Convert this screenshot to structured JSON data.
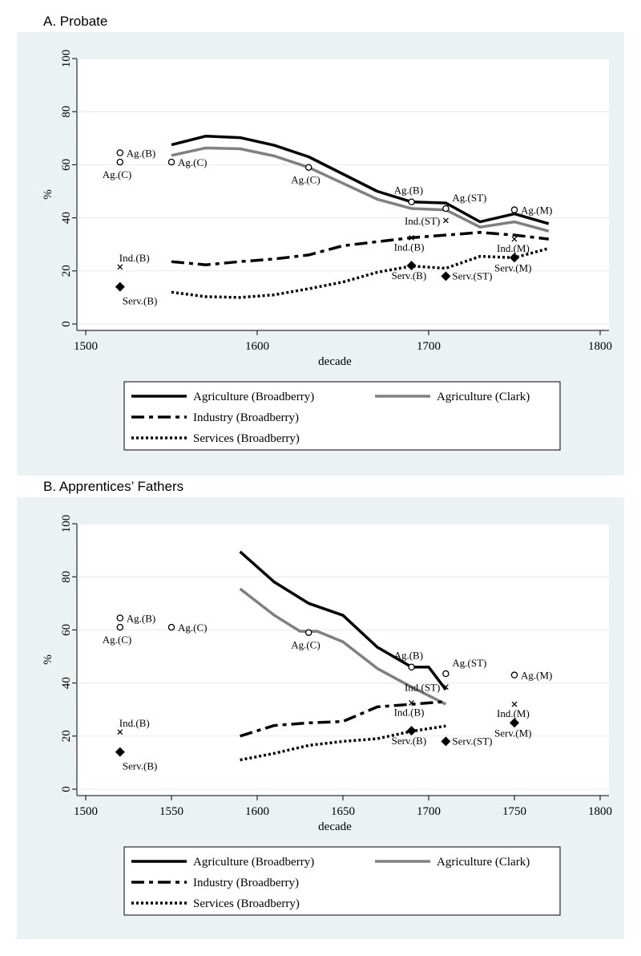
{
  "chart_data": [
    {
      "panel_title": "A.   Probate",
      "type": "line",
      "xlabel": "decade",
      "ylabel": "%",
      "xlim": [
        1500,
        1800
      ],
      "ylim": [
        0,
        100
      ],
      "xticks": [
        "1500",
        "1600",
        "1700",
        "1800"
      ],
      "yticks": [
        "0",
        "20",
        "40",
        "60",
        "80",
        "100"
      ],
      "series": [
        {
          "name": "Agriculture (Broadberry)",
          "color": "#000000",
          "style": "solid",
          "x": [
            1550,
            1570,
            1590,
            1610,
            1630,
            1650,
            1670,
            1690,
            1710,
            1730,
            1750,
            1770
          ],
          "y": [
            67.5,
            70.8,
            70.2,
            67.3,
            63,
            56.5,
            50,
            46,
            45.6,
            38.5,
            41.5,
            37.8
          ]
        },
        {
          "name": "Agriculture (Clark)",
          "color": "#808080",
          "style": "solid",
          "x": [
            1550,
            1570,
            1590,
            1610,
            1630,
            1650,
            1670,
            1690,
            1710,
            1730,
            1750,
            1770
          ],
          "y": [
            63.5,
            66.3,
            66,
            63.3,
            59,
            53,
            47,
            43.5,
            43,
            36.5,
            38.5,
            35
          ]
        },
        {
          "name": "Industry (Broadberry)",
          "color": "#000000",
          "style": "dashdot",
          "x": [
            1550,
            1570,
            1590,
            1610,
            1630,
            1650,
            1670,
            1690,
            1710,
            1730,
            1750,
            1770
          ],
          "y": [
            23.5,
            22.3,
            23.5,
            24.5,
            26,
            29.5,
            31,
            32.5,
            33.5,
            34.5,
            33.5,
            32
          ]
        },
        {
          "name": "Services (Broadberry)",
          "color": "#000000",
          "style": "dotted",
          "x": [
            1550,
            1570,
            1590,
            1610,
            1630,
            1650,
            1670,
            1690,
            1710,
            1730,
            1750,
            1770
          ],
          "y": [
            12,
            10.3,
            10,
            11,
            13.3,
            15.8,
            19.5,
            21.8,
            21,
            25.5,
            25,
            28.5
          ]
        }
      ],
      "annotations": [
        {
          "x": 1520,
          "y": 64.5,
          "marker": "circle",
          "label": "Ag.(B)",
          "anchor": "right"
        },
        {
          "x": 1520,
          "y": 61,
          "marker": "circle",
          "label": "Ag.(C)",
          "anchor": "below"
        },
        {
          "x": 1550,
          "y": 61,
          "marker": "circle",
          "label": "Ag.(C)",
          "anchor": "right"
        },
        {
          "x": 1630,
          "y": 59,
          "marker": "circle",
          "label": "Ag.(C)",
          "anchor": "below"
        },
        {
          "x": 1690,
          "y": 46,
          "marker": "circle",
          "label": "Ag.(B)",
          "anchor": "above"
        },
        {
          "x": 1710,
          "y": 43.5,
          "marker": "circle",
          "label": "Ag.(ST)",
          "anchor": "above-right"
        },
        {
          "x": 1750,
          "y": 43,
          "marker": "circle",
          "label": "Ag.(M)",
          "anchor": "right"
        },
        {
          "x": 1520,
          "y": 21.5,
          "marker": "x",
          "label": "Ind.(B)",
          "anchor": "above"
        },
        {
          "x": 1690,
          "y": 32.5,
          "marker": "x",
          "label": "Ind.(B)",
          "anchor": "below"
        },
        {
          "x": 1710,
          "y": 39,
          "marker": "x",
          "label": "Ind.(ST)",
          "anchor": "left"
        },
        {
          "x": 1750,
          "y": 32,
          "marker": "x",
          "label": "Ind.(M)",
          "anchor": "below"
        },
        {
          "x": 1520,
          "y": 14,
          "marker": "diamond",
          "label": "Serv.(B)",
          "anchor": "below"
        },
        {
          "x": 1690,
          "y": 22,
          "marker": "diamond",
          "label": "Serv.(B)",
          "anchor": "below"
        },
        {
          "x": 1710,
          "y": 18,
          "marker": "diamond",
          "label": "Serv.(ST)",
          "anchor": "right"
        },
        {
          "x": 1750,
          "y": 25,
          "marker": "diamond",
          "label": "Serv.(M)",
          "anchor": "below"
        }
      ],
      "legend": [
        "Agriculture (Broadberry)",
        "Agriculture (Clark)",
        "Industry (Broadberry)",
        "Services (Broadberry)"
      ],
      "legend_position": "bottom"
    },
    {
      "panel_title": "B.   Apprentices’ Fathers",
      "type": "line",
      "xlabel": "decade",
      "ylabel": "%",
      "xlim": [
        1500,
        1800
      ],
      "ylim": [
        0,
        100
      ],
      "xticks": [
        "1500",
        "1550",
        "1600",
        "1650",
        "1700",
        "1750",
        "1800"
      ],
      "yticks": [
        "0",
        "20",
        "40",
        "60",
        "80",
        "100"
      ],
      "series": [
        {
          "name": "Agriculture (Broadberry)",
          "color": "#000000",
          "style": "solid",
          "x": [
            1590,
            1610,
            1630,
            1650,
            1670,
            1690,
            1700,
            1710
          ],
          "y": [
            89.5,
            78,
            70,
            65.5,
            53.5,
            46,
            46,
            37.5
          ]
        },
        {
          "name": "Agriculture (Clark)",
          "color": "#808080",
          "style": "solid",
          "x": [
            1590,
            1610,
            1625,
            1635,
            1650,
            1670,
            1690,
            1710
          ],
          "y": [
            75.5,
            65.5,
            59.5,
            59.5,
            55.5,
            45.5,
            38.5,
            32
          ]
        },
        {
          "name": "Industry (Broadberry)",
          "color": "#000000",
          "style": "dashdot",
          "x": [
            1590,
            1610,
            1630,
            1650,
            1670,
            1690,
            1710
          ],
          "y": [
            20,
            24,
            25,
            25.5,
            31,
            32,
            33
          ]
        },
        {
          "name": "Services (Broadberry)",
          "color": "#000000",
          "style": "dotted",
          "x": [
            1590,
            1610,
            1630,
            1650,
            1670,
            1690,
            1710
          ],
          "y": [
            11,
            13.5,
            16.5,
            18,
            19,
            21.8,
            23.8
          ]
        }
      ],
      "annotations": [
        {
          "x": 1520,
          "y": 64.5,
          "marker": "circle",
          "label": "Ag.(B)",
          "anchor": "right"
        },
        {
          "x": 1520,
          "y": 61,
          "marker": "circle",
          "label": "Ag.(C)",
          "anchor": "below"
        },
        {
          "x": 1550,
          "y": 61,
          "marker": "circle",
          "label": "Ag.(C)",
          "anchor": "right"
        },
        {
          "x": 1630,
          "y": 59,
          "marker": "circle",
          "label": "Ag.(C)",
          "anchor": "below"
        },
        {
          "x": 1690,
          "y": 46,
          "marker": "circle",
          "label": "Ag.(B)",
          "anchor": "above"
        },
        {
          "x": 1710,
          "y": 43.5,
          "marker": "circle",
          "label": "Ag.(ST)",
          "anchor": "above-right"
        },
        {
          "x": 1750,
          "y": 43,
          "marker": "circle",
          "label": "Ag.(M)",
          "anchor": "right"
        },
        {
          "x": 1520,
          "y": 21.5,
          "marker": "x",
          "label": "Ind.(B)",
          "anchor": "above"
        },
        {
          "x": 1690,
          "y": 32.5,
          "marker": "x",
          "label": "Ind.(B)",
          "anchor": "below"
        },
        {
          "x": 1710,
          "y": 38.5,
          "marker": "x",
          "label": "Ind.(ST)",
          "anchor": "left"
        },
        {
          "x": 1750,
          "y": 32,
          "marker": "x",
          "label": "Ind.(M)",
          "anchor": "below"
        },
        {
          "x": 1520,
          "y": 14,
          "marker": "diamond",
          "label": "Serv.(B)",
          "anchor": "below"
        },
        {
          "x": 1690,
          "y": 22,
          "marker": "diamond",
          "label": "Serv.(B)",
          "anchor": "below"
        },
        {
          "x": 1710,
          "y": 18,
          "marker": "diamond",
          "label": "Serv.(ST)",
          "anchor": "right"
        },
        {
          "x": 1750,
          "y": 25,
          "marker": "diamond",
          "label": "Serv.(M)",
          "anchor": "below"
        }
      ],
      "legend": [
        "Agriculture (Broadberry)",
        "Agriculture (Clark)",
        "Industry (Broadberry)",
        "Services (Broadberry)"
      ],
      "legend_position": "bottom"
    }
  ],
  "colors": {
    "panel_background": "#eaf2f3",
    "plot_background": "#ffffff"
  }
}
